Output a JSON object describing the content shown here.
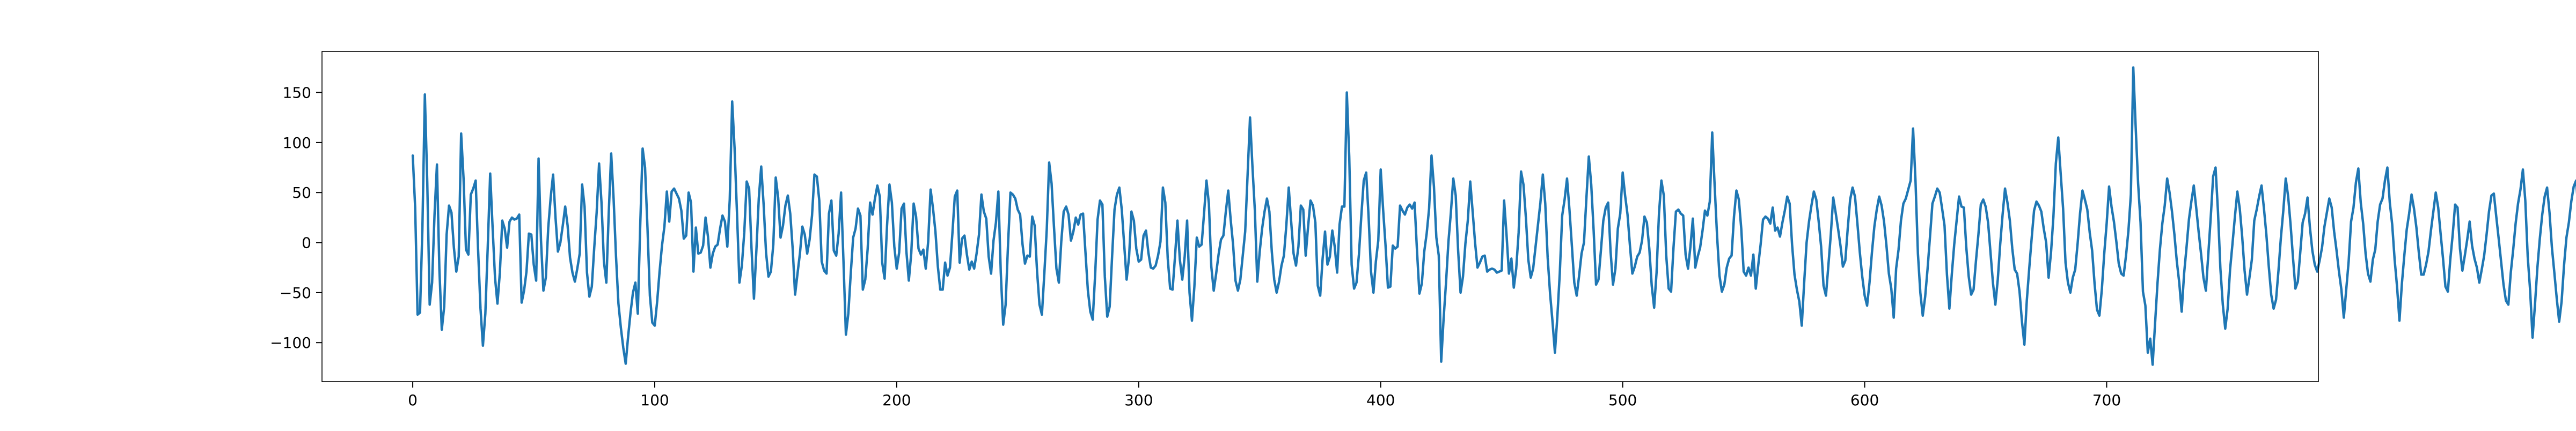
{
  "chart_data": {
    "type": "line",
    "title": "",
    "xlabel": "",
    "ylabel": "",
    "xlim": [
      -37.5,
      787.5
    ],
    "ylim": [
      -139,
      191
    ],
    "grid": false,
    "legend": "none",
    "xticks": [
      0,
      100,
      200,
      300,
      400,
      500,
      600,
      700
    ],
    "yticks": [
      -100,
      -50,
      0,
      50,
      100,
      150
    ],
    "xtick_labels": [
      "0",
      "100",
      "200",
      "300",
      "400",
      "500",
      "600",
      "700"
    ],
    "ytick_labels": [
      "−100",
      "−50",
      "0",
      "50",
      "100",
      "150"
    ],
    "series_color": "#1f77b4",
    "n_points": 750,
    "series": [
      {
        "values": [
          87,
          35,
          -72,
          -70,
          15,
          148,
          60,
          -62,
          -40,
          28,
          78,
          -26,
          -87,
          -64,
          8,
          37,
          30,
          -5,
          -29,
          -14,
          109,
          64,
          -7,
          -12,
          48,
          54,
          62,
          -7,
          -66,
          -103,
          -71,
          -4,
          69,
          15,
          -35,
          -61,
          -30,
          22,
          14,
          -5,
          21,
          25,
          23,
          24,
          28,
          -60,
          -48,
          -29,
          9,
          8,
          -22,
          -38,
          84,
          2,
          -48,
          -35,
          15,
          45,
          68,
          25,
          -9,
          0,
          17,
          36,
          17,
          -15,
          -30,
          -39,
          -26,
          -11,
          58,
          36,
          -30,
          -54,
          -44,
          -5,
          30,
          79,
          40,
          -19,
          -40,
          30,
          89,
          44,
          -14,
          -61,
          -85,
          -105,
          -121,
          -94,
          -70,
          -50,
          -40,
          -71,
          17,
          94,
          75,
          15,
          -53,
          -80,
          -83,
          -59,
          -29,
          -3,
          16,
          51,
          21,
          51,
          54,
          49,
          44,
          32,
          4,
          7,
          50,
          40,
          -29,
          15,
          -11,
          -10,
          -3,
          25,
          6,
          -25,
          -11,
          -4,
          -2,
          14,
          27,
          21,
          -4,
          43,
          141,
          94,
          29,
          -40,
          -23,
          10,
          61,
          54,
          -6,
          -56,
          -8,
          44,
          76,
          38,
          -10,
          -34,
          -29,
          -2,
          65,
          45,
          5,
          17,
          37,
          47,
          29,
          -6,
          -52,
          -31,
          -11,
          16,
          8,
          -11,
          3,
          27,
          68,
          66,
          42,
          -19,
          -28,
          -31,
          29,
          42,
          -8,
          -13,
          9,
          50,
          -19,
          -92,
          -71,
          -31,
          5,
          14,
          34,
          27,
          -47,
          -37,
          -6,
          40,
          28,
          44,
          57,
          46,
          -20,
          -36,
          17,
          58,
          40,
          -4,
          -26,
          -10,
          34,
          39,
          -9,
          -38,
          -11,
          39,
          26,
          -6,
          -12,
          -7,
          -26,
          1,
          53,
          34,
          11,
          -24,
          -47,
          -47,
          -20,
          -33,
          -25,
          9,
          46,
          52,
          -20,
          4,
          7,
          -12,
          -27,
          -19,
          -26,
          -11,
          8,
          48,
          31,
          24,
          -14,
          -31,
          2,
          20,
          51,
          -30,
          -82,
          -62,
          -2,
          50,
          48,
          44,
          33,
          28,
          -2,
          -21,
          -13,
          -14,
          26,
          17,
          -29,
          -62,
          -72,
          -31,
          13,
          80,
          59,
          15,
          -26,
          -40,
          1,
          31,
          36,
          28,
          2,
          11,
          25,
          18,
          28,
          29,
          -10,
          -48,
          -69,
          -77,
          -32,
          23,
          42,
          38,
          -34,
          -74,
          -64,
          -14,
          33,
          48,
          55,
          33,
          -2,
          -37,
          -15,
          31,
          22,
          -6,
          -19,
          -17,
          7,
          12,
          -10,
          -25,
          -26,
          -23,
          -13,
          1,
          55,
          40,
          -16,
          -46,
          -47,
          -14,
          22,
          -17,
          -37,
          -14,
          22,
          -50,
          -78,
          -44,
          5,
          -4,
          -2,
          29,
          62,
          39,
          -24,
          -48,
          -31,
          -12,
          3,
          7,
          31,
          52,
          23,
          -2,
          -38,
          -48,
          -37,
          -13,
          11,
          68,
          125,
          76,
          32,
          -39,
          -9,
          14,
          31,
          44,
          31,
          -9,
          -37,
          -50,
          -39,
          -23,
          -13,
          17,
          55,
          21,
          -11,
          -23,
          -4,
          37,
          33,
          -13,
          16,
          42,
          37,
          20,
          -43,
          -53,
          -16,
          11,
          -22,
          -14,
          12,
          -4,
          -30,
          18,
          36,
          36,
          150,
          86,
          -22,
          -46,
          -40,
          -12,
          27,
          62,
          70,
          26,
          -29,
          -50,
          -19,
          2,
          73,
          33,
          -3,
          -45,
          -44,
          -3,
          -6,
          -4,
          37,
          32,
          28,
          35,
          38,
          34,
          40,
          -8,
          -51,
          -41,
          -9,
          9,
          34,
          87,
          56,
          5,
          -13,
          -119,
          -76,
          -40,
          1,
          30,
          64,
          47,
          -8,
          -50,
          -34,
          -1,
          22,
          61,
          31,
          0,
          -25,
          -20,
          -14,
          -13,
          -29,
          -27,
          -26,
          -27,
          -30,
          -29,
          -28,
          42,
          8,
          -31,
          -16,
          -45,
          -26,
          10,
          71,
          58,
          25,
          -17,
          -35,
          -26,
          -4,
          18,
          40,
          68,
          39,
          -15,
          -51,
          -79,
          -110,
          -74,
          -31,
          27,
          43,
          64,
          33,
          -3,
          -40,
          -53,
          -33,
          -11,
          0,
          44,
          86,
          58,
          12,
          -42,
          -37,
          -8,
          22,
          35,
          40,
          -9,
          -42,
          -26,
          14,
          29,
          70,
          47,
          28,
          -3,
          -31,
          -24,
          -14,
          -10,
          2,
          26,
          20,
          -6,
          -43,
          -65,
          -30,
          29,
          62,
          47,
          -13,
          -46,
          -49,
          -5,
          31,
          33,
          29,
          27,
          -12,
          -26,
          -4,
          24,
          -25,
          -14,
          -5,
          12,
          32,
          27,
          41,
          110,
          57,
          7,
          -33,
          -49,
          -42,
          -25,
          -16,
          -13,
          26,
          52,
          43,
          14,
          -29,
          -33,
          -25,
          -33,
          -12,
          -46,
          -23,
          -2,
          23,
          26,
          24,
          19,
          35,
          12,
          15,
          6,
          20,
          32,
          46,
          39,
          -2,
          -32,
          -47,
          -59,
          -83,
          -40,
          0,
          21,
          37,
          51,
          43,
          21,
          -4,
          -43,
          -53,
          -23,
          8,
          45,
          30,
          14,
          -3,
          -24,
          -18,
          14,
          43,
          55,
          46,
          19,
          -10,
          -34,
          -53,
          -63,
          -40,
          -10,
          16,
          33,
          46,
          37,
          21,
          -3,
          -31,
          -46,
          -75,
          -26,
          -7,
          22,
          39,
          44,
          53,
          62,
          114,
          62,
          -11,
          -50,
          -73,
          -54,
          -26,
          6,
          39,
          46,
          54,
          50,
          34,
          17,
          -32,
          -66,
          -32,
          -2,
          22,
          46,
          36,
          35,
          -5,
          -34,
          -52,
          -47,
          -18,
          8,
          38,
          43,
          36,
          20,
          -10,
          -40,
          -62,
          -37,
          -2,
          28,
          54,
          40,
          22,
          -6,
          -27,
          -31,
          -49,
          -79,
          -102,
          -58,
          -26,
          4,
          32,
          41,
          37,
          31,
          14,
          0,
          -35,
          -10,
          26,
          79,
          105,
          69,
          34,
          -20,
          -40,
          -50,
          -35,
          -27,
          -1,
          29,
          52,
          43,
          33,
          10,
          -8,
          -41,
          -67,
          -73,
          -47,
          -11,
          19,
          56,
          36,
          21,
          1,
          -21,
          -31,
          -33,
          -13,
          12,
          48,
          175,
          115,
          59,
          20,
          -49,
          -63,
          -110,
          -96,
          -122,
          -81,
          -41,
          -7,
          19,
          37,
          64,
          50,
          31,
          8,
          -19,
          -40,
          -69,
          -31,
          -5,
          23,
          41,
          57,
          35,
          11,
          -11,
          -35,
          -48,
          -12,
          25,
          66,
          75,
          31,
          -26,
          -62,
          -86,
          -66,
          -27,
          -1,
          26,
          51,
          34,
          6,
          -28,
          -52,
          -35,
          -17,
          22,
          33,
          46,
          57,
          34,
          8,
          -24,
          -52,
          -66,
          -57,
          -28,
          5,
          32,
          64,
          46,
          18,
          -15,
          -46,
          -39,
          -10,
          20,
          29,
          45,
          15,
          -8,
          -22,
          -29,
          -18,
          -5,
          16,
          30,
          44,
          35,
          11,
          -8,
          -29,
          -47,
          -75,
          -47,
          -19,
          21,
          35,
          60,
          74,
          40,
          19,
          -11,
          -31,
          -39,
          -17,
          -7,
          21,
          38,
          44,
          62,
          75,
          40,
          18,
          -17,
          -44,
          -78,
          -41,
          -13,
          13,
          29,
          48,
          34,
          15,
          -10,
          -32,
          -32,
          -22,
          -9,
          12,
          31,
          50,
          35,
          9,
          -16,
          -44,
          -49,
          -17,
          8,
          38,
          35,
          -6,
          -28,
          -13,
          3,
          21,
          -3,
          -16,
          -25,
          -40,
          -27,
          -13,
          8,
          31,
          47,
          49,
          26,
          4,
          -19,
          -42,
          -58,
          -62,
          -30,
          -7,
          19,
          39,
          53,
          73,
          42,
          -14,
          -48,
          -95,
          -62,
          -25,
          4,
          28,
          46,
          55,
          30,
          -5,
          -30,
          -56,
          -79,
          -59,
          -23,
          5,
          20,
          41,
          56,
          62,
          31,
          -8,
          -49,
          -56,
          -31,
          -17,
          -4,
          15,
          27,
          40,
          51,
          26,
          -7,
          -37,
          -56,
          -38,
          -12,
          8,
          22,
          40,
          23,
          -7,
          -28,
          -48,
          -47,
          -33,
          -14,
          7,
          25,
          44,
          40,
          19,
          -11,
          -38,
          -68,
          -38,
          -1,
          26,
          36,
          38,
          45,
          23,
          -5,
          -28,
          -46,
          -50,
          -21,
          6,
          30,
          42,
          35,
          13,
          -6,
          -24,
          -42,
          -46,
          -17,
          7,
          24,
          31,
          25,
          23,
          -16,
          -8,
          -3,
          3,
          -21,
          -43,
          -30,
          -11,
          9,
          30,
          40,
          13,
          -14,
          -34,
          -52,
          -42,
          -22,
          -9,
          16,
          30,
          39,
          18,
          -9,
          -41,
          -54,
          -34,
          -17,
          2,
          16,
          33,
          45,
          60,
          37,
          5,
          -19,
          -33,
          -49,
          -36,
          -15,
          9,
          23,
          28,
          19,
          1,
          -12,
          -32,
          -28,
          -12,
          3,
          18,
          37,
          42,
          28,
          5,
          -20,
          -42,
          -56,
          -33,
          -14,
          4,
          21,
          37,
          43,
          28,
          11,
          -9,
          -21,
          -35,
          -57,
          -38,
          -14,
          7,
          18,
          33,
          47,
          35,
          12,
          -6,
          -23,
          -44,
          -47,
          -23,
          1,
          20,
          29,
          37,
          49,
          29,
          9,
          -8,
          -23,
          -41,
          -53,
          -33,
          -15,
          3,
          17,
          30,
          38,
          26,
          8,
          -14,
          -32,
          -49,
          -58,
          -37,
          -15,
          7,
          19,
          31,
          45,
          31,
          12,
          -6,
          -24,
          -38,
          -48,
          -31,
          -12,
          4,
          17,
          31,
          43,
          29,
          10,
          -8,
          -28,
          -43,
          -50,
          -30,
          -14,
          2,
          19,
          33,
          42,
          27,
          7,
          -12,
          -31,
          -47,
          -55,
          -33,
          -15,
          4,
          22,
          36,
          45,
          30,
          9,
          -11,
          -29,
          -46,
          -53,
          -31,
          -13,
          6,
          21,
          34,
          48,
          32,
          10,
          -10,
          -28,
          -45,
          -57,
          -36,
          -17,
          3,
          20,
          35,
          46,
          29,
          8,
          -13,
          -33,
          -47,
          -58,
          -35,
          -16,
          5,
          23,
          38,
          45
        ]
      }
    ]
  }
}
